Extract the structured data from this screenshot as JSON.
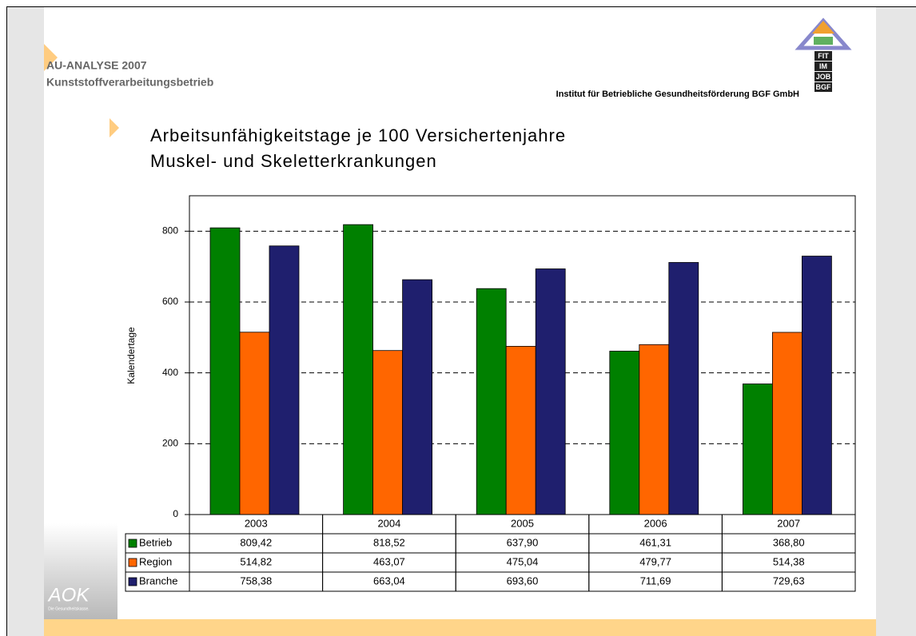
{
  "header": {
    "line1": "AU-ANALYSE  2007",
    "line2": "Kunststoffverarbeitungsbetrieb",
    "institute": "Institut für Betriebliche Gesundheitsförderung BGF GmbH",
    "logo_lines": [
      "FIT",
      "IM",
      "JOB",
      "BGF"
    ],
    "aok": "AOK",
    "aok_slogan": "Die Gesundheitskasse."
  },
  "chart_data": {
    "type": "bar",
    "title": [
      "Arbeitsunfähigkeitstage je 100 Versichertenjahre",
      "Muskel- und Skeletterkrankungen"
    ],
    "y_label": "Kalendertage",
    "categories": [
      "2003",
      "2004",
      "2005",
      "2006",
      "2007"
    ],
    "series": [
      {
        "name": "Betrieb",
        "color": "#008000",
        "values": [
          809.42,
          818.52,
          637.9,
          461.31,
          368.8
        ],
        "value_labels": [
          "809,42",
          "818,52",
          "637,90",
          "461,31",
          "368,80"
        ]
      },
      {
        "name": "Region",
        "color": "#ff6600",
        "values": [
          514.82,
          463.07,
          475.04,
          479.77,
          514.38
        ],
        "value_labels": [
          "514,82",
          "463,07",
          "475,04",
          "479,77",
          "514,38"
        ]
      },
      {
        "name": "Branche",
        "color": "#1f1f6e",
        "values": [
          758.38,
          663.04,
          693.6,
          711.69,
          729.63
        ],
        "value_labels": [
          "758,38",
          "663,04",
          "693,60",
          "711,69",
          "729,63"
        ]
      }
    ],
    "ylim": [
      0,
      900
    ],
    "yticks": [
      0,
      200,
      400,
      600,
      800
    ],
    "grid": true
  }
}
